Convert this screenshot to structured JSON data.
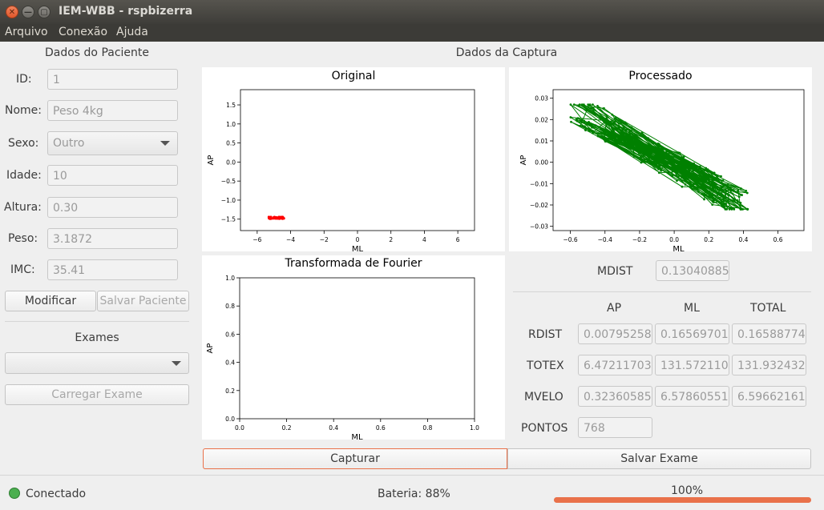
{
  "window": {
    "title": "IEM-WBB - rspbizerra",
    "close_glyph": "✕",
    "min_glyph": "—",
    "max_glyph": "▢"
  },
  "menu": {
    "items": [
      "Arquivo",
      "Conexão",
      "Ajuda"
    ]
  },
  "paciente": {
    "header": "Dados do Paciente",
    "id_label": "ID:",
    "id": "1",
    "nome_label": "Nome:",
    "nome": "Peso 4kg",
    "sexo_label": "Sexo:",
    "sexo": "Outro",
    "idade_label": "Idade:",
    "idade": "10",
    "altura_label": "Altura:",
    "altura": "0.30",
    "peso_label": "Peso:",
    "peso": "3.1872",
    "imc_label": "IMC:",
    "imc": "35.41",
    "modificar": "Modificar",
    "salvar": "Salvar Paciente"
  },
  "exames": {
    "header": "Exames",
    "selected": "",
    "carregar": "Carregar Exame"
  },
  "captura": {
    "header": "Dados da Captura",
    "mdist_label": "MDIST",
    "mdist": "0.130408853",
    "col_headers": [
      "AP",
      "ML",
      "TOTAL"
    ],
    "rows": [
      {
        "label": "RDIST",
        "values": [
          "0.007952589",
          "0.165697014",
          "0.165887745"
        ]
      },
      {
        "label": "TOTEX",
        "values": [
          "6.472117032",
          "131.5721103",
          "131.9324323"
        ]
      },
      {
        "label": "MVELO",
        "values": [
          "0.323605851",
          "6.578605515",
          "6.596621615"
        ]
      }
    ],
    "pontos_label": "PONTOS",
    "pontos": "768",
    "capturar": "Capturar",
    "salvar_exame": "Salvar Exame"
  },
  "status": {
    "connection": "Conectado",
    "battery": "Bateria: 88%",
    "progress_text": "100%",
    "progress": 1.0,
    "colors": {
      "connected": "#4caf50",
      "progress": "#e9714a"
    }
  },
  "chart_data": [
    {
      "type": "scatter",
      "title": "Original",
      "xlabel": "ML",
      "ylabel": "AP",
      "xlim": [
        -7,
        7
      ],
      "ylim": [
        -1.8,
        1.9
      ],
      "xticks": [
        "−6",
        "−4",
        "−2",
        "0",
        "2",
        "4",
        "6"
      ],
      "yticks": [
        "1.5",
        "1.0",
        "0.5",
        "0.0",
        "−0.5",
        "−1.0",
        "−1.5"
      ],
      "xtick_vals": [
        -6,
        -4,
        -2,
        0,
        2,
        4,
        6
      ],
      "ytick_vals": [
        1.5,
        1.0,
        0.5,
        0.0,
        -0.5,
        -1.0,
        -1.5
      ],
      "series": [
        {
          "color": "#ff0000",
          "x_range": [
            -5.3,
            -4.4
          ],
          "y_range": [
            -1.49,
            -1.44
          ]
        }
      ]
    },
    {
      "type": "line",
      "title": "Processado",
      "xlabel": "ML",
      "ylabel": "AP",
      "xlim": [
        -0.7,
        0.75
      ],
      "ylim": [
        -0.032,
        0.034
      ],
      "xticks": [
        "−0.6",
        "−0.4",
        "−0.2",
        "0.0",
        "0.2",
        "0.4",
        "0.6"
      ],
      "yticks": [
        "0.03",
        "0.02",
        "0.01",
        "0.00",
        "−0.01",
        "−0.02",
        "−0.03"
      ],
      "xtick_vals": [
        -0.6,
        -0.4,
        -0.2,
        0.0,
        0.2,
        0.4,
        0.6
      ],
      "ytick_vals": [
        0.03,
        0.02,
        0.01,
        0.0,
        -0.01,
        -0.02,
        -0.03
      ],
      "series": [
        {
          "color": "#008000",
          "x_range": [
            -0.6,
            0.43
          ],
          "y_range": [
            -0.022,
            0.027
          ]
        }
      ]
    },
    {
      "type": "line",
      "title": "Transformada de Fourier",
      "xlabel": "ML",
      "ylabel": "AP",
      "xlim": [
        0,
        1
      ],
      "ylim": [
        0,
        1
      ],
      "xticks": [
        "0.0",
        "0.2",
        "0.4",
        "0.6",
        "0.8",
        "1.0"
      ],
      "yticks": [
        "1.0",
        "0.8",
        "0.6",
        "0.4",
        "0.2",
        "0.0"
      ],
      "xtick_vals": [
        0,
        0.2,
        0.4,
        0.6,
        0.8,
        1.0
      ],
      "ytick_vals": [
        1.0,
        0.8,
        0.6,
        0.4,
        0.2,
        0.0
      ],
      "series": []
    }
  ]
}
